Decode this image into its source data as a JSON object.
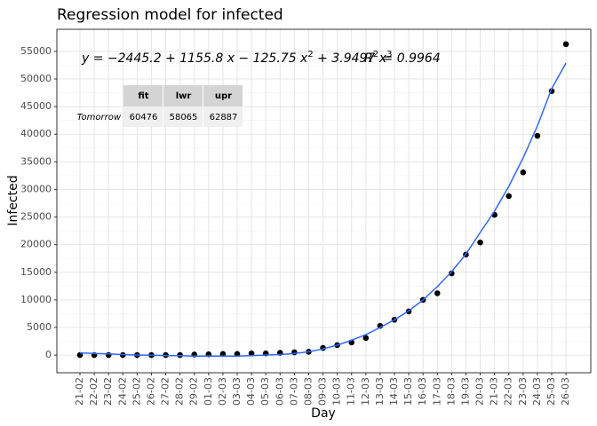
{
  "chart_data": {
    "type": "scatter",
    "title": "Regression model for infected",
    "x_label": "Day",
    "y_label": "Infected",
    "categories": [
      "21-02",
      "22-02",
      "23-02",
      "24-02",
      "25-02",
      "26-02",
      "27-02",
      "28-02",
      "29-02",
      "01-03",
      "02-03",
      "03-03",
      "04-03",
      "05-03",
      "06-03",
      "07-03",
      "08-03",
      "09-03",
      "10-03",
      "11-03",
      "12-03",
      "13-03",
      "14-03",
      "15-03",
      "16-03",
      "17-03",
      "18-03",
      "19-03",
      "20-03",
      "21-03",
      "22-03",
      "23-03",
      "24-03",
      "25-03",
      "26-03"
    ],
    "series": [
      {
        "kind": "points",
        "color": "#000000",
        "values": [
          0,
          0,
          0,
          0,
          0,
          0,
          0,
          0,
          100,
          150,
          200,
          200,
          300,
          300,
          400,
          500,
          600,
          1300,
          1800,
          2300,
          3100,
          5300,
          6400,
          7900,
          10000,
          11200,
          14800,
          18200,
          20400,
          25400,
          28800,
          33100,
          39700,
          47800,
          56300
        ]
      },
      {
        "kind": "line",
        "color": "#3366ff",
        "values": [
          400,
          300,
          200,
          100,
          0,
          0,
          -100,
          -100,
          -200,
          -200,
          -200,
          -200,
          -100,
          0,
          100,
          300,
          600,
          1100,
          1800,
          2700,
          3700,
          5000,
          6400,
          8000,
          10000,
          12400,
          15100,
          18300,
          22200,
          26050,
          30550,
          35700,
          41500,
          48250,
          52900
        ]
      }
    ],
    "ylim": [
      -3200,
      59000
    ],
    "yticks": [
      0,
      5000,
      10000,
      15000,
      20000,
      25000,
      30000,
      35000,
      40000,
      45000,
      50000,
      55000
    ],
    "grid": true,
    "equation_parts": [
      "y = −2445.2 + 1155.8 x − 125.75 x",
      "2",
      " + 3.9497 x",
      "3"
    ],
    "r2_parts": [
      "R",
      "2",
      " = 0.9964"
    ],
    "annotation_table": {
      "columns": [
        "fit",
        "lwr",
        "upr"
      ],
      "row_label": "Tomorrow",
      "values": [
        60476,
        58065,
        62887
      ]
    }
  }
}
